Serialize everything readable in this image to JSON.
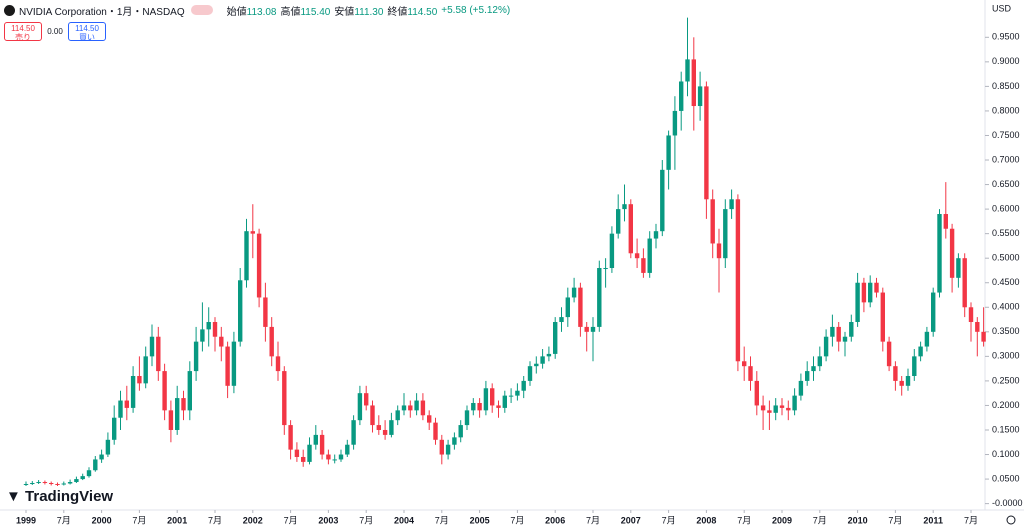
{
  "header": {
    "title": "NVIDIA Corporation・1月・NASDAQ",
    "ohlc": [
      {
        "label": "始値",
        "value": "113.08"
      },
      {
        "label": "高値",
        "value": "115.40"
      },
      {
        "label": "安値",
        "value": "111.30"
      },
      {
        "label": "終値",
        "value": "114.50"
      }
    ],
    "change": "+5.58 (+5.12%)"
  },
  "buttons": {
    "sell_price": "114.50",
    "sell_label": "売り",
    "spread": "0.00",
    "buy_price": "114.50",
    "buy_label": "買い"
  },
  "currency": "USD",
  "watermark": "TradingView",
  "chart_data": {
    "type": "candlestick",
    "up_color": "#089981",
    "down_color": "#f23645",
    "ylim": [
      -0.013,
      1.026
    ],
    "yticks": [
      {
        "value": 0,
        "label": "-0.0000"
      },
      {
        "value": 0.05,
        "label": "0.0500"
      },
      {
        "value": 0.1,
        "label": "0.1000"
      },
      {
        "value": 0.15,
        "label": "0.1500"
      },
      {
        "value": 0.2,
        "label": "0.2000"
      },
      {
        "value": 0.25,
        "label": "0.2500"
      },
      {
        "value": 0.3,
        "label": "0.3000"
      },
      {
        "value": 0.35,
        "label": "0.3500"
      },
      {
        "value": 0.4,
        "label": "0.4000"
      },
      {
        "value": 0.45,
        "label": "0.4500"
      },
      {
        "value": 0.5,
        "label": "0.5000"
      },
      {
        "value": 0.55,
        "label": "0.5500"
      },
      {
        "value": 0.6,
        "label": "0.6000"
      },
      {
        "value": 0.65,
        "label": "0.6500"
      },
      {
        "value": 0.7,
        "label": "0.7000"
      },
      {
        "value": 0.75,
        "label": "0.7500"
      },
      {
        "value": 0.8,
        "label": "0.8000"
      },
      {
        "value": 0.85,
        "label": "0.8500"
      },
      {
        "value": 0.9,
        "label": "0.9000"
      },
      {
        "value": 0.95,
        "label": "0.9500"
      }
    ],
    "xticks": [
      {
        "value": 0,
        "label": "1999"
      },
      {
        "value": 6,
        "label": "7月"
      },
      {
        "value": 12,
        "label": "2000"
      },
      {
        "value": 18,
        "label": "7月"
      },
      {
        "value": 24,
        "label": "2001"
      },
      {
        "value": 30,
        "label": "7月"
      },
      {
        "value": 36,
        "label": "2002"
      },
      {
        "value": 42,
        "label": "7月"
      },
      {
        "value": 48,
        "label": "2003"
      },
      {
        "value": 54,
        "label": "7月"
      },
      {
        "value": 60,
        "label": "2004"
      },
      {
        "value": 66,
        "label": "7月"
      },
      {
        "value": 72,
        "label": "2005"
      },
      {
        "value": 78,
        "label": "7月"
      },
      {
        "value": 84,
        "label": "2006"
      },
      {
        "value": 90,
        "label": "7月"
      },
      {
        "value": 96,
        "label": "2007"
      },
      {
        "value": 102,
        "label": "7月"
      },
      {
        "value": 108,
        "label": "2008"
      },
      {
        "value": 114,
        "label": "7月"
      },
      {
        "value": 120,
        "label": "2009"
      },
      {
        "value": 126,
        "label": "7月"
      },
      {
        "value": 132,
        "label": "2010"
      },
      {
        "value": 138,
        "label": "7月"
      },
      {
        "value": 144,
        "label": "2011"
      },
      {
        "value": 150,
        "label": "7月"
      }
    ],
    "ohlc": [
      [
        0.038,
        0.045,
        0.036,
        0.04
      ],
      [
        0.04,
        0.046,
        0.038,
        0.042
      ],
      [
        0.042,
        0.048,
        0.04,
        0.044
      ],
      [
        0.044,
        0.047,
        0.039,
        0.042
      ],
      [
        0.042,
        0.045,
        0.037,
        0.04
      ],
      [
        0.04,
        0.043,
        0.036,
        0.039
      ],
      [
        0.039,
        0.045,
        0.037,
        0.041
      ],
      [
        0.041,
        0.049,
        0.039,
        0.044
      ],
      [
        0.044,
        0.055,
        0.042,
        0.05
      ],
      [
        0.05,
        0.061,
        0.048,
        0.056
      ],
      [
        0.056,
        0.074,
        0.053,
        0.068
      ],
      [
        0.068,
        0.097,
        0.065,
        0.09
      ],
      [
        0.09,
        0.11,
        0.083,
        0.1
      ],
      [
        0.1,
        0.145,
        0.095,
        0.13
      ],
      [
        0.13,
        0.2,
        0.12,
        0.175
      ],
      [
        0.175,
        0.23,
        0.15,
        0.21
      ],
      [
        0.21,
        0.24,
        0.17,
        0.195
      ],
      [
        0.195,
        0.28,
        0.185,
        0.26
      ],
      [
        0.26,
        0.3,
        0.23,
        0.245
      ],
      [
        0.245,
        0.32,
        0.235,
        0.3
      ],
      [
        0.3,
        0.365,
        0.28,
        0.34
      ],
      [
        0.34,
        0.36,
        0.25,
        0.27
      ],
      [
        0.27,
        0.285,
        0.17,
        0.19
      ],
      [
        0.19,
        0.21,
        0.125,
        0.15
      ],
      [
        0.15,
        0.24,
        0.14,
        0.215
      ],
      [
        0.215,
        0.23,
        0.17,
        0.19
      ],
      [
        0.19,
        0.29,
        0.17,
        0.27
      ],
      [
        0.27,
        0.36,
        0.25,
        0.33
      ],
      [
        0.33,
        0.41,
        0.31,
        0.355
      ],
      [
        0.355,
        0.4,
        0.32,
        0.37
      ],
      [
        0.37,
        0.38,
        0.31,
        0.34
      ],
      [
        0.34,
        0.36,
        0.29,
        0.32
      ],
      [
        0.32,
        0.33,
        0.215,
        0.24
      ],
      [
        0.24,
        0.35,
        0.225,
        0.33
      ],
      [
        0.33,
        0.48,
        0.32,
        0.455
      ],
      [
        0.455,
        0.58,
        0.44,
        0.555
      ],
      [
        0.555,
        0.61,
        0.5,
        0.55
      ],
      [
        0.55,
        0.56,
        0.4,
        0.42
      ],
      [
        0.42,
        0.45,
        0.33,
        0.36
      ],
      [
        0.36,
        0.38,
        0.28,
        0.3
      ],
      [
        0.3,
        0.33,
        0.25,
        0.27
      ],
      [
        0.27,
        0.28,
        0.14,
        0.16
      ],
      [
        0.16,
        0.17,
        0.09,
        0.11
      ],
      [
        0.11,
        0.125,
        0.085,
        0.095
      ],
      [
        0.095,
        0.11,
        0.075,
        0.085
      ],
      [
        0.085,
        0.135,
        0.08,
        0.12
      ],
      [
        0.12,
        0.16,
        0.11,
        0.14
      ],
      [
        0.14,
        0.15,
        0.09,
        0.1
      ],
      [
        0.1,
        0.11,
        0.08,
        0.09
      ],
      [
        0.09,
        0.1,
        0.082,
        0.09
      ],
      [
        0.09,
        0.11,
        0.085,
        0.1
      ],
      [
        0.1,
        0.13,
        0.095,
        0.12
      ],
      [
        0.12,
        0.18,
        0.11,
        0.17
      ],
      [
        0.17,
        0.24,
        0.16,
        0.225
      ],
      [
        0.225,
        0.24,
        0.19,
        0.2
      ],
      [
        0.2,
        0.21,
        0.145,
        0.16
      ],
      [
        0.16,
        0.18,
        0.14,
        0.15
      ],
      [
        0.15,
        0.17,
        0.13,
        0.14
      ],
      [
        0.14,
        0.185,
        0.135,
        0.17
      ],
      [
        0.17,
        0.2,
        0.16,
        0.19
      ],
      [
        0.19,
        0.225,
        0.18,
        0.2
      ],
      [
        0.2,
        0.21,
        0.175,
        0.19
      ],
      [
        0.19,
        0.225,
        0.18,
        0.21
      ],
      [
        0.21,
        0.225,
        0.17,
        0.18
      ],
      [
        0.18,
        0.19,
        0.15,
        0.165
      ],
      [
        0.165,
        0.175,
        0.12,
        0.13
      ],
      [
        0.13,
        0.14,
        0.08,
        0.1
      ],
      [
        0.1,
        0.13,
        0.09,
        0.12
      ],
      [
        0.12,
        0.145,
        0.11,
        0.135
      ],
      [
        0.135,
        0.17,
        0.125,
        0.16
      ],
      [
        0.16,
        0.2,
        0.15,
        0.19
      ],
      [
        0.19,
        0.215,
        0.18,
        0.205
      ],
      [
        0.205,
        0.215,
        0.175,
        0.19
      ],
      [
        0.19,
        0.25,
        0.18,
        0.235
      ],
      [
        0.235,
        0.245,
        0.185,
        0.2
      ],
      [
        0.2,
        0.21,
        0.175,
        0.195
      ],
      [
        0.195,
        0.23,
        0.185,
        0.22
      ],
      [
        0.22,
        0.235,
        0.205,
        0.22
      ],
      [
        0.22,
        0.245,
        0.21,
        0.23
      ],
      [
        0.23,
        0.26,
        0.215,
        0.25
      ],
      [
        0.25,
        0.29,
        0.24,
        0.28
      ],
      [
        0.28,
        0.3,
        0.265,
        0.285
      ],
      [
        0.285,
        0.315,
        0.275,
        0.3
      ],
      [
        0.3,
        0.32,
        0.29,
        0.305
      ],
      [
        0.305,
        0.38,
        0.295,
        0.37
      ],
      [
        0.37,
        0.4,
        0.35,
        0.38
      ],
      [
        0.38,
        0.44,
        0.36,
        0.42
      ],
      [
        0.42,
        0.46,
        0.41,
        0.44
      ],
      [
        0.44,
        0.45,
        0.34,
        0.36
      ],
      [
        0.36,
        0.37,
        0.31,
        0.35
      ],
      [
        0.35,
        0.38,
        0.29,
        0.36
      ],
      [
        0.36,
        0.495,
        0.35,
        0.48
      ],
      [
        0.48,
        0.5,
        0.44,
        0.48
      ],
      [
        0.48,
        0.565,
        0.47,
        0.55
      ],
      [
        0.55,
        0.63,
        0.54,
        0.6
      ],
      [
        0.6,
        0.65,
        0.575,
        0.61
      ],
      [
        0.61,
        0.62,
        0.5,
        0.51
      ],
      [
        0.51,
        0.54,
        0.48,
        0.5
      ],
      [
        0.5,
        0.52,
        0.46,
        0.47
      ],
      [
        0.47,
        0.555,
        0.46,
        0.54
      ],
      [
        0.54,
        0.57,
        0.52,
        0.555
      ],
      [
        0.555,
        0.7,
        0.545,
        0.68
      ],
      [
        0.68,
        0.76,
        0.64,
        0.75
      ],
      [
        0.75,
        0.83,
        0.68,
        0.8
      ],
      [
        0.8,
        0.88,
        0.76,
        0.86
      ],
      [
        0.86,
        0.99,
        0.83,
        0.905
      ],
      [
        0.905,
        0.95,
        0.76,
        0.81
      ],
      [
        0.81,
        0.88,
        0.78,
        0.85
      ],
      [
        0.85,
        0.86,
        0.58,
        0.62
      ],
      [
        0.62,
        0.64,
        0.5,
        0.53
      ],
      [
        0.53,
        0.56,
        0.43,
        0.5
      ],
      [
        0.5,
        0.62,
        0.48,
        0.6
      ],
      [
        0.6,
        0.64,
        0.58,
        0.62
      ],
      [
        0.62,
        0.63,
        0.27,
        0.29
      ],
      [
        0.29,
        0.32,
        0.25,
        0.28
      ],
      [
        0.28,
        0.3,
        0.23,
        0.25
      ],
      [
        0.25,
        0.27,
        0.18,
        0.2
      ],
      [
        0.2,
        0.22,
        0.15,
        0.19
      ],
      [
        0.19,
        0.21,
        0.15,
        0.185
      ],
      [
        0.185,
        0.215,
        0.17,
        0.2
      ],
      [
        0.2,
        0.215,
        0.18,
        0.195
      ],
      [
        0.195,
        0.21,
        0.17,
        0.19
      ],
      [
        0.19,
        0.235,
        0.18,
        0.22
      ],
      [
        0.22,
        0.265,
        0.21,
        0.25
      ],
      [
        0.25,
        0.29,
        0.24,
        0.27
      ],
      [
        0.27,
        0.3,
        0.25,
        0.28
      ],
      [
        0.28,
        0.32,
        0.27,
        0.3
      ],
      [
        0.3,
        0.355,
        0.29,
        0.34
      ],
      [
        0.34,
        0.385,
        0.32,
        0.36
      ],
      [
        0.36,
        0.37,
        0.31,
        0.33
      ],
      [
        0.33,
        0.35,
        0.3,
        0.34
      ],
      [
        0.34,
        0.385,
        0.33,
        0.37
      ],
      [
        0.37,
        0.47,
        0.36,
        0.45
      ],
      [
        0.45,
        0.46,
        0.39,
        0.41
      ],
      [
        0.41,
        0.465,
        0.4,
        0.45
      ],
      [
        0.45,
        0.46,
        0.42,
        0.43
      ],
      [
        0.43,
        0.44,
        0.31,
        0.33
      ],
      [
        0.33,
        0.34,
        0.27,
        0.28
      ],
      [
        0.28,
        0.29,
        0.23,
        0.25
      ],
      [
        0.25,
        0.26,
        0.22,
        0.24
      ],
      [
        0.24,
        0.275,
        0.23,
        0.26
      ],
      [
        0.26,
        0.315,
        0.25,
        0.3
      ],
      [
        0.3,
        0.33,
        0.29,
        0.32
      ],
      [
        0.32,
        0.36,
        0.31,
        0.35
      ],
      [
        0.35,
        0.44,
        0.34,
        0.43
      ],
      [
        0.43,
        0.6,
        0.42,
        0.59
      ],
      [
        0.59,
        0.655,
        0.54,
        0.56
      ],
      [
        0.56,
        0.57,
        0.43,
        0.46
      ],
      [
        0.46,
        0.51,
        0.44,
        0.5
      ],
      [
        0.5,
        0.51,
        0.38,
        0.4
      ],
      [
        0.4,
        0.41,
        0.33,
        0.37
      ],
      [
        0.37,
        0.38,
        0.3,
        0.35
      ],
      [
        0.35,
        0.4,
        0.32,
        0.33
      ]
    ]
  }
}
